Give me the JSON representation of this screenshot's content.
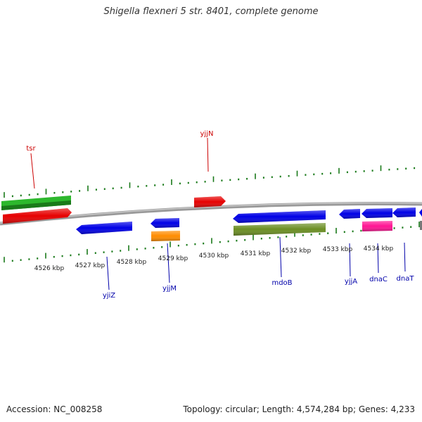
{
  "title": "Shigella flexneri 5 str. 8401, complete genome",
  "footer": {
    "accession": "Accession: NC_008258",
    "summary": "Topology: circular; Length: 4,574,284 bp; Genes: 4,233"
  },
  "colors": {
    "backbone": "#8c8c8c",
    "tick": "#1a7a1a",
    "forward_label": "#cc0000",
    "reverse_label": "#0000aa",
    "cds_forward": "#e60000",
    "cds_reverse": "#0000e6",
    "rna_green": "#2db82d",
    "orange": "#ff8c00",
    "olive": "#6b8e23",
    "pink": "#ff1493"
  },
  "scale": {
    "labels": [
      "4526 kbp",
      "4527 kbp",
      "4528 kbp",
      "4529 kbp",
      "4530 kbp",
      "4531 kbp",
      "4532 kbp",
      "4533 kbp",
      "4534 kbp"
    ]
  },
  "forward_genes": [
    {
      "name": "tsr"
    },
    {
      "name": "yjjN"
    }
  ],
  "reverse_genes": [
    {
      "name": "yjiZ"
    },
    {
      "name": "yjjM"
    },
    {
      "name": "mdoB"
    },
    {
      "name": "yjjA"
    },
    {
      "name": "dnaC"
    },
    {
      "name": "dnaT"
    }
  ]
}
